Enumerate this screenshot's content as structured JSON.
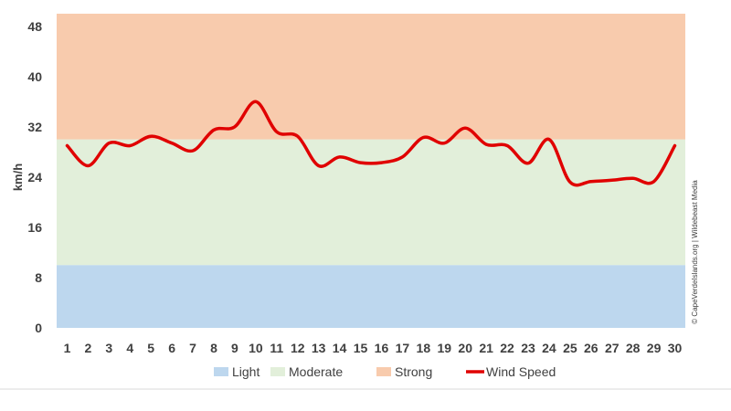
{
  "chart_data": {
    "type": "line",
    "title": "",
    "xlabel": "",
    "ylabel": "km/h",
    "x": [
      1,
      2,
      3,
      4,
      5,
      6,
      7,
      8,
      9,
      10,
      11,
      12,
      13,
      14,
      15,
      16,
      17,
      18,
      19,
      20,
      21,
      22,
      23,
      24,
      25,
      26,
      27,
      28,
      29,
      30
    ],
    "yticks": [
      0,
      8,
      16,
      24,
      32,
      40,
      48
    ],
    "ylim": [
      0,
      50
    ],
    "bands": [
      {
        "name": "Light",
        "from": 0,
        "to": 10,
        "color": "#bdd7ee"
      },
      {
        "name": "Moderate",
        "from": 10,
        "to": 30,
        "color": "#e2efda"
      },
      {
        "name": "Strong",
        "from": 30,
        "to": 50,
        "color": "#f8cbad"
      }
    ],
    "series": [
      {
        "name": "Wind Speed",
        "color": "#e00000",
        "values": [
          29,
          25.8,
          29.4,
          29,
          30.5,
          29.4,
          28.2,
          31.5,
          32,
          36,
          31.2,
          30.5,
          25.8,
          27.2,
          26.3,
          26.3,
          27.2,
          30.3,
          29.4,
          31.8,
          29.2,
          29,
          26.2,
          30,
          23.2,
          23.3,
          23.5,
          23.8,
          23.3,
          29
        ]
      }
    ],
    "legend": {
      "position": "bottom",
      "entries": [
        "Light",
        "Moderate",
        "Strong",
        "Wind Speed"
      ]
    },
    "annotation": "© CapeVerdeIslands.org | Wildebeast Media"
  }
}
